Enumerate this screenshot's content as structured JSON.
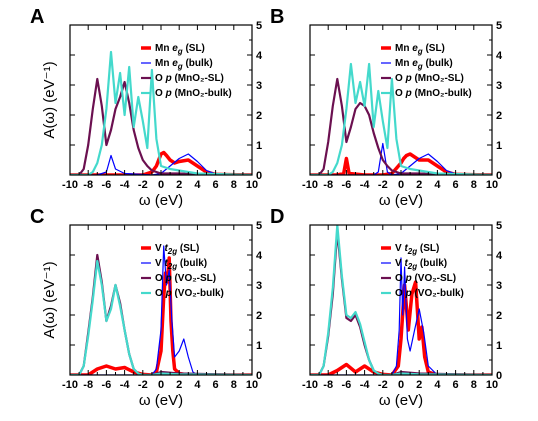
{
  "colors": {
    "sl_metal": "#ff0000",
    "bulk_metal": "#0000ff",
    "o_sl": "#6b1050",
    "o_bulk": "#44d9cc"
  },
  "chart_data": [
    {
      "type": "line",
      "panel_letter": "A",
      "xlabel": "ω (eV)",
      "ylabel": "A(ω) (eV⁻¹)",
      "xlim": [
        -10,
        10
      ],
      "ylim": [
        0,
        5
      ],
      "xticks": [
        -10,
        -8,
        -6,
        -4,
        -2,
        0,
        2,
        4,
        6,
        8,
        10
      ],
      "yticks": [
        0,
        1,
        2,
        3,
        4,
        5
      ],
      "series": [
        {
          "name": "Mn eg (SL)",
          "color_key": "sl_metal",
          "width": 3.5,
          "x": [
            -10,
            -2,
            -1,
            -0.5,
            0,
            0.3,
            0.6,
            1,
            1.5,
            2,
            3,
            4,
            5,
            6,
            10
          ],
          "y": [
            0,
            0,
            0.1,
            0.3,
            0.7,
            0.75,
            0.65,
            0.5,
            0.4,
            0.45,
            0.5,
            0.3,
            0.1,
            0.02,
            0
          ]
        },
        {
          "name": "Mn eg (bulk)",
          "color_key": "bulk_metal",
          "width": 1.2,
          "x": [
            -10,
            -7,
            -6,
            -5.5,
            -5,
            -4,
            -1,
            0,
            1,
            2,
            3,
            4,
            5,
            6,
            10
          ],
          "y": [
            0,
            0,
            0.1,
            0.65,
            0.2,
            0.05,
            0,
            0.05,
            0.3,
            0.55,
            0.7,
            0.45,
            0.15,
            0.03,
            0
          ]
        },
        {
          "name": "O p (MnO2-SL)",
          "color_key": "o_sl",
          "width": 2.2,
          "x": [
            -10,
            -9,
            -8.5,
            -8,
            -7.5,
            -7,
            -6.5,
            -6,
            -5.5,
            -5,
            -4.5,
            -4,
            -3.5,
            -3,
            -2.5,
            -2,
            -1.5,
            -1,
            0,
            2,
            4,
            10
          ],
          "y": [
            0,
            0,
            0.2,
            1.0,
            2.2,
            3.2,
            2.3,
            1.0,
            1.5,
            2.2,
            2.6,
            3.1,
            2.4,
            1.5,
            0.9,
            0.5,
            0.3,
            0.15,
            0.05,
            0.05,
            0.02,
            0
          ]
        },
        {
          "name": "O p (MnO2-bulk)",
          "color_key": "o_bulk",
          "width": 2.2,
          "x": [
            -10,
            -8,
            -7.5,
            -7,
            -6.5,
            -6,
            -5.5,
            -5,
            -4.5,
            -4,
            -3.5,
            -3,
            -2.5,
            -2,
            -1.5,
            -1,
            -0.5,
            0,
            1,
            2,
            3,
            4,
            10
          ],
          "y": [
            0,
            0,
            0.1,
            0.4,
            1.0,
            2.2,
            4.1,
            2.4,
            3.4,
            2.0,
            3.6,
            1.6,
            2.6,
            1.8,
            0.9,
            3.5,
            1.2,
            0.3,
            0.2,
            0.15,
            0.1,
            0.05,
            0
          ]
        }
      ],
      "legend": [
        {
          "prefix": "Mn ",
          "sym": "e",
          "sub": "g",
          "suffix": " (SL)",
          "color_key": "sl_metal"
        },
        {
          "prefix": "Mn ",
          "sym": "e",
          "sub": "g",
          "suffix": " (bulk)",
          "color_key": "bulk_metal"
        },
        {
          "prefix": "O ",
          "sym": "p",
          "sub": "",
          "suffix": " (MnO₂-SL)",
          "color_key": "o_sl"
        },
        {
          "prefix": "O ",
          "sym": "p",
          "sub": "",
          "suffix": " (MnO₂-bulk)",
          "color_key": "o_bulk"
        }
      ]
    },
    {
      "type": "line",
      "panel_letter": "B",
      "xlabel": "ω (eV)",
      "ylabel": "",
      "xlim": [
        -10,
        10
      ],
      "ylim": [
        0,
        5
      ],
      "xticks": [
        -10,
        -8,
        -6,
        -4,
        -2,
        0,
        2,
        4,
        6,
        8,
        10
      ],
      "yticks": [
        0,
        1,
        2,
        3,
        4,
        5
      ],
      "series": [
        {
          "name": "Mn eg (SL)",
          "color_key": "sl_metal",
          "width": 3.5,
          "x": [
            -10,
            -7,
            -6.3,
            -6,
            -5.7,
            -4,
            -2,
            -1,
            0,
            0.3,
            0.6,
            1,
            1.5,
            2,
            3,
            4,
            5,
            6,
            10
          ],
          "y": [
            0,
            0,
            0.05,
            0.55,
            0.05,
            0,
            0,
            0.05,
            0.4,
            0.55,
            0.65,
            0.7,
            0.6,
            0.5,
            0.5,
            0.3,
            0.1,
            0.02,
            0
          ]
        },
        {
          "name": "Mn eg (bulk)",
          "color_key": "bulk_metal",
          "width": 1.2,
          "x": [
            -10,
            -3,
            -2.5,
            -2,
            -1.5,
            -1,
            0,
            1,
            2,
            3,
            4,
            5,
            6,
            10
          ],
          "y": [
            0,
            0,
            0.1,
            1.05,
            0.1,
            0,
            0.05,
            0.3,
            0.55,
            0.7,
            0.45,
            0.15,
            0.03,
            0
          ]
        },
        {
          "name": "O p (MnO2-SL)",
          "color_key": "o_sl",
          "width": 2.2,
          "x": [
            -10,
            -9,
            -8.5,
            -8,
            -7.5,
            -7,
            -6.5,
            -6,
            -5.5,
            -5,
            -4.5,
            -4,
            -3.5,
            -3,
            -2.5,
            -2,
            -1.5,
            -1,
            0,
            2,
            4,
            10
          ],
          "y": [
            0,
            0,
            0.2,
            1.1,
            2.3,
            3.2,
            2.3,
            1.1,
            1.6,
            2.2,
            2.4,
            2.3,
            2.0,
            1.4,
            0.9,
            0.5,
            0.3,
            0.15,
            0.05,
            0.05,
            0.02,
            0
          ]
        },
        {
          "name": "O p (MnO2-bulk)",
          "color_key": "o_bulk",
          "width": 2.2,
          "x": [
            -10,
            -8,
            -7.5,
            -7,
            -6.5,
            -6,
            -5.5,
            -5,
            -4.5,
            -4,
            -3.5,
            -3,
            -2.5,
            -2,
            -1.5,
            -1,
            -0.5,
            0,
            1,
            2,
            3,
            4,
            10
          ],
          "y": [
            0,
            0,
            0.1,
            0.4,
            1.0,
            2.2,
            3.7,
            2.4,
            3.1,
            2.3,
            3.7,
            1.6,
            2.8,
            1.8,
            0.9,
            3.2,
            1.2,
            0.3,
            0.2,
            0.15,
            0.1,
            0.05,
            0
          ]
        }
      ],
      "legend": [
        {
          "prefix": "Mn ",
          "sym": "e",
          "sub": "g",
          "suffix": " (SL)",
          "color_key": "sl_metal"
        },
        {
          "prefix": "Mn ",
          "sym": "e",
          "sub": "g",
          "suffix": " (bulk)",
          "color_key": "bulk_metal"
        },
        {
          "prefix": "O ",
          "sym": "p",
          "sub": "",
          "suffix": " (MnO₂-SL)",
          "color_key": "o_sl"
        },
        {
          "prefix": "O ",
          "sym": "p",
          "sub": "",
          "suffix": " (MnO₂-bulk)",
          "color_key": "o_bulk"
        }
      ]
    },
    {
      "type": "line",
      "panel_letter": "C",
      "xlabel": "ω (eV)",
      "ylabel": "A(ω) (eV⁻¹)",
      "xlim": [
        -10,
        10
      ],
      "ylim": [
        0,
        5
      ],
      "xticks": [
        -10,
        -8,
        -6,
        -4,
        -2,
        0,
        2,
        4,
        6,
        8,
        10
      ],
      "yticks": [
        0,
        1,
        2,
        3,
        4,
        5
      ],
      "series": [
        {
          "name": "V t2g (SL)",
          "color_key": "sl_metal",
          "width": 3.5,
          "x": [
            -10,
            -8,
            -7,
            -6,
            -5,
            -4,
            -3,
            -2,
            -1,
            -0.5,
            0,
            0.3,
            0.5,
            0.7,
            0.9,
            1.1,
            1.3,
            1.5,
            2,
            3,
            10
          ],
          "y": [
            0,
            0,
            0.2,
            0.3,
            0.2,
            0.25,
            0.1,
            0.02,
            0,
            0.1,
            0.8,
            2.6,
            3.4,
            3.1,
            3.9,
            1.8,
            0.8,
            0.2,
            0.05,
            0,
            0
          ]
        },
        {
          "name": "V t2g (bulk)",
          "color_key": "bulk_metal",
          "width": 1.2,
          "x": [
            -10,
            -1,
            -0.5,
            0,
            0.3,
            0.6,
            0.9,
            1.2,
            1.5,
            2,
            2.5,
            3,
            3.5,
            4,
            10
          ],
          "y": [
            0,
            0,
            0.2,
            1.5,
            4.3,
            3.0,
            3.5,
            1.8,
            0.6,
            0.8,
            1.2,
            0.6,
            0.1,
            0,
            0
          ]
        },
        {
          "name": "O p (VO2-SL)",
          "color_key": "o_sl",
          "width": 2.2,
          "x": [
            -10,
            -9,
            -8.5,
            -8,
            -7.5,
            -7,
            -6.5,
            -6,
            -5.5,
            -5,
            -4.5,
            -4,
            -3.5,
            -3,
            -2.5,
            -2,
            -1,
            0,
            2,
            10
          ],
          "y": [
            0,
            0,
            0.3,
            1.4,
            2.6,
            4.0,
            3.1,
            1.8,
            2.3,
            3.0,
            2.4,
            1.5,
            0.7,
            0.2,
            0.05,
            0,
            0,
            0.1,
            0.05,
            0
          ]
        },
        {
          "name": "O p (VO2-bulk)",
          "color_key": "o_bulk",
          "width": 2.2,
          "x": [
            -10,
            -9,
            -8.5,
            -8,
            -7.5,
            -7,
            -6.5,
            -6,
            -5.5,
            -5,
            -4.5,
            -4,
            -3.5,
            -3,
            -2.5,
            -2,
            -1,
            0,
            2,
            10
          ],
          "y": [
            0,
            0,
            0.3,
            1.3,
            2.5,
            3.8,
            3.0,
            1.8,
            2.2,
            3.0,
            2.3,
            1.5,
            0.7,
            0.2,
            0.05,
            0,
            0,
            0.05,
            0.02,
            0
          ]
        }
      ],
      "legend": [
        {
          "prefix": "V ",
          "sym": "t",
          "sub": "2g",
          "suffix": " (SL)",
          "color_key": "sl_metal"
        },
        {
          "prefix": "V ",
          "sym": "t",
          "sub": "2g",
          "suffix": " (bulk)",
          "color_key": "bulk_metal"
        },
        {
          "prefix": "O ",
          "sym": "p",
          "sub": "",
          "suffix": " (VO₂-SL)",
          "color_key": "o_sl"
        },
        {
          "prefix": "O ",
          "sym": "p",
          "sub": "",
          "suffix": " (VO₂-bulk)",
          "color_key": "o_bulk"
        }
      ]
    },
    {
      "type": "line",
      "panel_letter": "D",
      "xlabel": "ω (eV)",
      "ylabel": "",
      "xlim": [
        -10,
        10
      ],
      "ylim": [
        0,
        5
      ],
      "xticks": [
        -10,
        -8,
        -6,
        -4,
        -2,
        0,
        2,
        4,
        6,
        8,
        10
      ],
      "yticks": [
        0,
        1,
        2,
        3,
        4,
        5
      ],
      "series": [
        {
          "name": "V t2g (SL)",
          "color_key": "sl_metal",
          "width": 3.5,
          "x": [
            -10,
            -8,
            -7,
            -6,
            -5,
            -4,
            -3,
            -2,
            -1,
            -0.3,
            0,
            0.4,
            0.8,
            1.2,
            1.6,
            2,
            2.3,
            2.6,
            3,
            4,
            10
          ],
          "y": [
            0,
            0,
            0.15,
            0.35,
            0.1,
            0.3,
            0.1,
            0.02,
            0,
            0.3,
            1.2,
            3.0,
            1.5,
            2.7,
            3.1,
            1.2,
            1.6,
            0.6,
            0.1,
            0,
            0
          ]
        },
        {
          "name": "V t2g (bulk)",
          "color_key": "bulk_metal",
          "width": 1.2,
          "x": [
            -10,
            -1,
            -0.5,
            -0.2,
            0,
            0.2,
            0.4,
            0.7,
            1,
            1.5,
            2,
            2.5,
            3,
            4,
            10
          ],
          "y": [
            0,
            0,
            0.3,
            1.5,
            3.9,
            2.0,
            3.6,
            1.2,
            0.8,
            1.5,
            2.2,
            1.4,
            0.3,
            0,
            0
          ]
        },
        {
          "name": "O p (VO2-SL)",
          "color_key": "o_sl",
          "width": 2.2,
          "x": [
            -10,
            -9,
            -8.5,
            -8,
            -7.5,
            -7,
            -6.5,
            -6,
            -5.5,
            -5,
            -4.5,
            -4,
            -3.5,
            -3,
            -2.5,
            -2,
            -1,
            0,
            2,
            10
          ],
          "y": [
            0,
            0,
            0.3,
            1.3,
            2.7,
            4.8,
            3.2,
            1.9,
            1.8,
            2.0,
            1.6,
            1.0,
            0.5,
            0.15,
            0.05,
            0,
            0,
            0.1,
            0.05,
            0
          ]
        },
        {
          "name": "O p (VO2-bulk)",
          "color_key": "o_bulk",
          "width": 2.2,
          "x": [
            -10,
            -9,
            -8.5,
            -8,
            -7.5,
            -7,
            -6.5,
            -6,
            -5.5,
            -5,
            -4.5,
            -4,
            -3.5,
            -3,
            -2.5,
            -2,
            -1,
            0,
            2,
            10
          ],
          "y": [
            0,
            0,
            0.3,
            1.4,
            2.9,
            5.0,
            3.3,
            2.0,
            1.9,
            2.1,
            1.7,
            1.1,
            0.5,
            0.15,
            0.05,
            0,
            0,
            0.05,
            0.02,
            0
          ]
        }
      ],
      "legend": [
        {
          "prefix": "V ",
          "sym": "t",
          "sub": "2g",
          "suffix": " (SL)",
          "color_key": "sl_metal"
        },
        {
          "prefix": "V ",
          "sym": "t",
          "sub": "2g",
          "suffix": " (bulk)",
          "color_key": "bulk_metal"
        },
        {
          "prefix": "O ",
          "sym": "p",
          "sub": "",
          "suffix": " (VO₂-SL)",
          "color_key": "o_sl"
        },
        {
          "prefix": "O ",
          "sym": "p",
          "sub": "",
          "suffix": " (VO₂-bulk)",
          "color_key": "o_bulk"
        }
      ]
    }
  ]
}
